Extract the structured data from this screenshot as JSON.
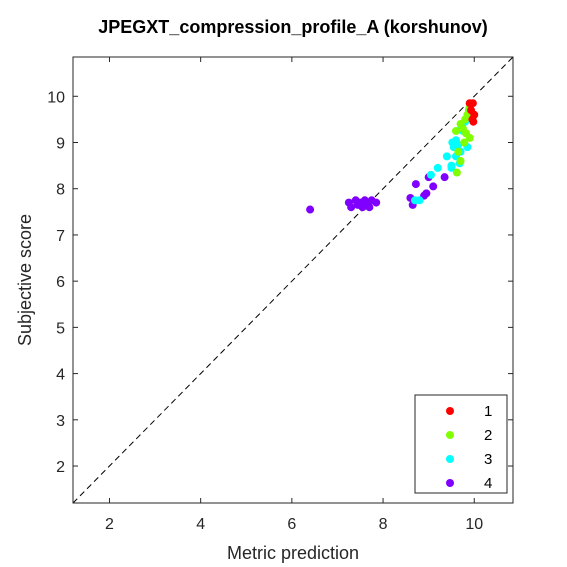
{
  "chart_data": {
    "type": "scatter",
    "title": "JPEGXT_compression_profile_A (korshunov)",
    "xlabel": "Metric prediction",
    "ylabel": "Subjective score",
    "xlim": [
      1.2,
      10.85
    ],
    "ylim": [
      1.2,
      10.85
    ],
    "xticks": [
      2,
      4,
      6,
      8,
      10
    ],
    "yticks": [
      2,
      3,
      4,
      5,
      6,
      7,
      8,
      9,
      10
    ],
    "grid": false,
    "legend_position": "bottom-right",
    "reference_line": "dashed y = x",
    "series": [
      {
        "name": "1",
        "color": "#ff0000",
        "points": [
          [
            9.9,
            9.85
          ],
          [
            9.97,
            9.85
          ],
          [
            9.93,
            9.7
          ],
          [
            10.0,
            9.6
          ],
          [
            9.96,
            9.5
          ],
          [
            9.98,
            9.45
          ]
        ]
      },
      {
        "name": "2",
        "color": "#80ff00",
        "points": [
          [
            9.6,
            9.25
          ],
          [
            9.7,
            9.4
          ],
          [
            9.8,
            9.5
          ],
          [
            9.85,
            9.6
          ],
          [
            9.88,
            9.7
          ],
          [
            9.9,
            9.75
          ],
          [
            9.75,
            9.3
          ],
          [
            9.82,
            9.2
          ],
          [
            9.9,
            9.1
          ],
          [
            9.65,
            8.8
          ],
          [
            9.7,
            8.6
          ],
          [
            9.62,
            8.35
          ],
          [
            9.78,
            9.0
          ]
        ]
      },
      {
        "name": "3",
        "color": "#00ffff",
        "points": [
          [
            9.2,
            8.45
          ],
          [
            9.05,
            8.3
          ],
          [
            8.7,
            7.75
          ],
          [
            8.8,
            7.75
          ],
          [
            9.4,
            8.7
          ],
          [
            9.5,
            8.5
          ],
          [
            9.55,
            8.9
          ],
          [
            9.6,
            9.05
          ],
          [
            9.65,
            8.95
          ],
          [
            9.7,
            8.8
          ],
          [
            9.75,
            9.25
          ],
          [
            9.8,
            9.45
          ],
          [
            9.72,
            9.35
          ],
          [
            9.6,
            8.7
          ],
          [
            9.5,
            8.45
          ],
          [
            9.68,
            8.55
          ],
          [
            9.85,
            8.9
          ],
          [
            9.52,
            9.0
          ]
        ]
      },
      {
        "name": "4",
        "color": "#8000ff",
        "points": [
          [
            6.4,
            7.55
          ],
          [
            7.25,
            7.7
          ],
          [
            7.3,
            7.6
          ],
          [
            7.4,
            7.75
          ],
          [
            7.45,
            7.65
          ],
          [
            7.5,
            7.7
          ],
          [
            7.55,
            7.6
          ],
          [
            7.6,
            7.75
          ],
          [
            7.65,
            7.65
          ],
          [
            7.7,
            7.6
          ],
          [
            7.75,
            7.75
          ],
          [
            7.85,
            7.7
          ],
          [
            8.6,
            7.8
          ],
          [
            8.65,
            7.65
          ],
          [
            8.72,
            8.1
          ],
          [
            8.9,
            7.85
          ],
          [
            8.95,
            7.9
          ],
          [
            9.0,
            8.25
          ],
          [
            9.1,
            8.05
          ],
          [
            9.35,
            8.25
          ]
        ]
      }
    ]
  }
}
